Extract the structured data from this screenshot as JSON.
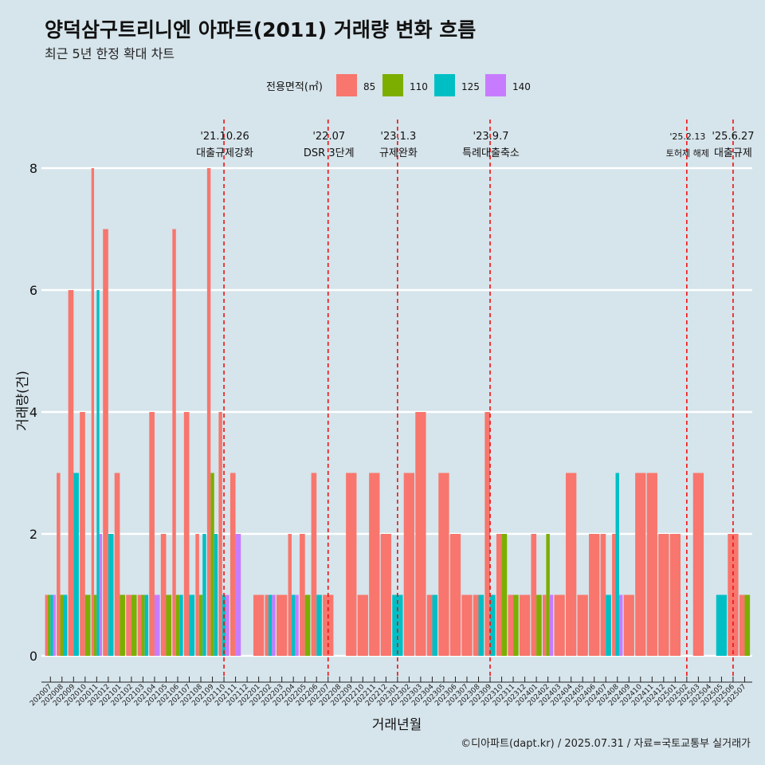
{
  "title": "양덕삼구트리니엔 아파트(2011) 거래량 변화 흐름",
  "subtitle": "최근 5년 한정 확대 차트",
  "caption": "©디아파트(dapt.kr) / 2025.07.31 / 자료=국토교통부 실거래가",
  "colors": {
    "85": "#f8766d",
    "110": "#7cae00",
    "125": "#00bfc4",
    "140": "#c77cff"
  },
  "chart_data": {
    "type": "bar",
    "xlabel": "거래년월",
    "ylabel": "거래량(건)",
    "ylim": [
      0,
      8
    ],
    "yticks": [
      0,
      2,
      4,
      6,
      8
    ],
    "legend_title": "전용면적(㎡)",
    "legend_position": "top",
    "series_names": [
      "85",
      "110",
      "125",
      "140"
    ],
    "categories": [
      "202007",
      "202008",
      "202009",
      "202010",
      "202011",
      "202012",
      "202101",
      "202102",
      "202103",
      "202104",
      "202105",
      "202106",
      "202107",
      "202108",
      "202109",
      "202110",
      "202111",
      "202112",
      "202201",
      "202202",
      "202203",
      "202204",
      "202205",
      "202206",
      "202207",
      "202208",
      "202209",
      "202210",
      "202211",
      "202212",
      "202301",
      "202302",
      "202303",
      "202304",
      "202305",
      "202306",
      "202307",
      "202308",
      "202309",
      "202310",
      "202311",
      "202312",
      "202401",
      "202402",
      "202403",
      "202404",
      "202405",
      "202406",
      "202407",
      "202408",
      "202409",
      "202410",
      "202411",
      "202412",
      "202501",
      "202502",
      "202503",
      "202504",
      "202505",
      "202506",
      "202507"
    ],
    "bars": [
      {
        "m": "202007",
        "v": {
          "85": 1,
          "110": 1,
          "125": 1,
          "140": 1
        }
      },
      {
        "m": "202008",
        "v": {
          "85": 3,
          "110": 1,
          "125": 1
        }
      },
      {
        "m": "202009",
        "v": {
          "85": 6,
          "125": 3
        }
      },
      {
        "m": "202010",
        "v": {
          "85": 4,
          "110": 1
        }
      },
      {
        "m": "202011",
        "v": {
          "85": 8,
          "110": 1,
          "125": 6,
          "140": 2
        }
      },
      {
        "m": "202012",
        "v": {
          "85": 7,
          "125": 2
        }
      },
      {
        "m": "202101",
        "v": {
          "85": 3,
          "110": 1
        }
      },
      {
        "m": "202102",
        "v": {
          "85": 1,
          "110": 1
        }
      },
      {
        "m": "202103",
        "v": {
          "85": 1,
          "110": 1,
          "125": 1
        }
      },
      {
        "m": "202104",
        "v": {
          "85": 4,
          "140": 1
        }
      },
      {
        "m": "202105",
        "v": {
          "85": 2,
          "110": 1
        }
      },
      {
        "m": "202106",
        "v": {
          "85": 7,
          "110": 1,
          "125": 1
        }
      },
      {
        "m": "202107",
        "v": {
          "85": 4,
          "125": 1
        }
      },
      {
        "m": "202108",
        "v": {
          "85": 2,
          "110": 1,
          "125": 2
        }
      },
      {
        "m": "202109",
        "v": {
          "85": 8,
          "110": 3,
          "125": 2
        }
      },
      {
        "m": "202110",
        "v": {
          "85": 4,
          "125": 1,
          "140": 1
        }
      },
      {
        "m": "202111",
        "v": {
          "85": 3,
          "140": 2
        }
      },
      {
        "m": "202112",
        "v": {}
      },
      {
        "m": "202201",
        "v": {
          "85": 1
        }
      },
      {
        "m": "202202",
        "v": {
          "85": 1,
          "125": 1,
          "140": 1
        }
      },
      {
        "m": "202203",
        "v": {
          "85": 1
        }
      },
      {
        "m": "202204",
        "v": {
          "85": 2,
          "125": 1,
          "140": 1
        }
      },
      {
        "m": "202205",
        "v": {
          "85": 2,
          "110": 1
        }
      },
      {
        "m": "202206",
        "v": {
          "85": 3,
          "125": 1
        }
      },
      {
        "m": "202207",
        "v": {
          "85": 1
        }
      },
      {
        "m": "202208",
        "v": {}
      },
      {
        "m": "202209",
        "v": {
          "85": 3
        }
      },
      {
        "m": "202210",
        "v": {
          "85": 1
        }
      },
      {
        "m": "202211",
        "v": {
          "85": 3
        }
      },
      {
        "m": "202212",
        "v": {
          "85": 2
        }
      },
      {
        "m": "202301",
        "v": {
          "125": 1
        }
      },
      {
        "m": "202302",
        "v": {
          "85": 3
        }
      },
      {
        "m": "202303",
        "v": {
          "85": 4
        }
      },
      {
        "m": "202304",
        "v": {
          "85": 1,
          "125": 1
        }
      },
      {
        "m": "202305",
        "v": {
          "85": 3
        }
      },
      {
        "m": "202306",
        "v": {
          "85": 2
        }
      },
      {
        "m": "202307",
        "v": {
          "85": 1
        }
      },
      {
        "m": "202308",
        "v": {
          "85": 1,
          "125": 1
        }
      },
      {
        "m": "202309",
        "v": {
          "85": 4,
          "125": 1
        }
      },
      {
        "m": "202310",
        "v": {
          "85": 2,
          "110": 2
        }
      },
      {
        "m": "202311",
        "v": {
          "85": 1,
          "110": 1
        }
      },
      {
        "m": "202312",
        "v": {
          "85": 1
        }
      },
      {
        "m": "202401",
        "v": {
          "85": 2,
          "110": 1
        }
      },
      {
        "m": "202402",
        "v": {
          "85": 1,
          "110": 2,
          "140": 1
        }
      },
      {
        "m": "202403",
        "v": {
          "85": 1
        }
      },
      {
        "m": "202404",
        "v": {
          "85": 3
        }
      },
      {
        "m": "202405",
        "v": {
          "85": 1
        }
      },
      {
        "m": "202406",
        "v": {
          "85": 2
        }
      },
      {
        "m": "202407",
        "v": {
          "85": 2,
          "125": 1
        }
      },
      {
        "m": "202408",
        "v": {
          "85": 2,
          "125": 3,
          "140": 1
        }
      },
      {
        "m": "202409",
        "v": {
          "85": 1
        }
      },
      {
        "m": "202410",
        "v": {
          "85": 3
        }
      },
      {
        "m": "202411",
        "v": {
          "85": 3
        }
      },
      {
        "m": "202412",
        "v": {
          "85": 2
        }
      },
      {
        "m": "202501",
        "v": {
          "85": 2
        }
      },
      {
        "m": "202502",
        "v": {}
      },
      {
        "m": "202503",
        "v": {
          "85": 3
        }
      },
      {
        "m": "202504",
        "v": {}
      },
      {
        "m": "202505",
        "v": {
          "125": 1
        }
      },
      {
        "m": "202506",
        "v": {
          "85": 2
        }
      },
      {
        "m": "202507",
        "v": {
          "85": 1,
          "110": 1
        }
      }
    ],
    "events": [
      {
        "month": "202110",
        "date": "'21.10.26",
        "label": "대출규제강화"
      },
      {
        "month": "202207",
        "date": "'22.07",
        "label": "DSR 3단계"
      },
      {
        "month": "202301",
        "date": "'23.1.3",
        "label": "규제완화"
      },
      {
        "month": "202309",
        "date": "'23.9.7",
        "label": "특례대출축소"
      },
      {
        "month": "202502",
        "date": "'25.2.13",
        "label": "토허제 해제"
      },
      {
        "month": "202506",
        "date": "'25.6.27",
        "label": "대출규제"
      }
    ]
  }
}
